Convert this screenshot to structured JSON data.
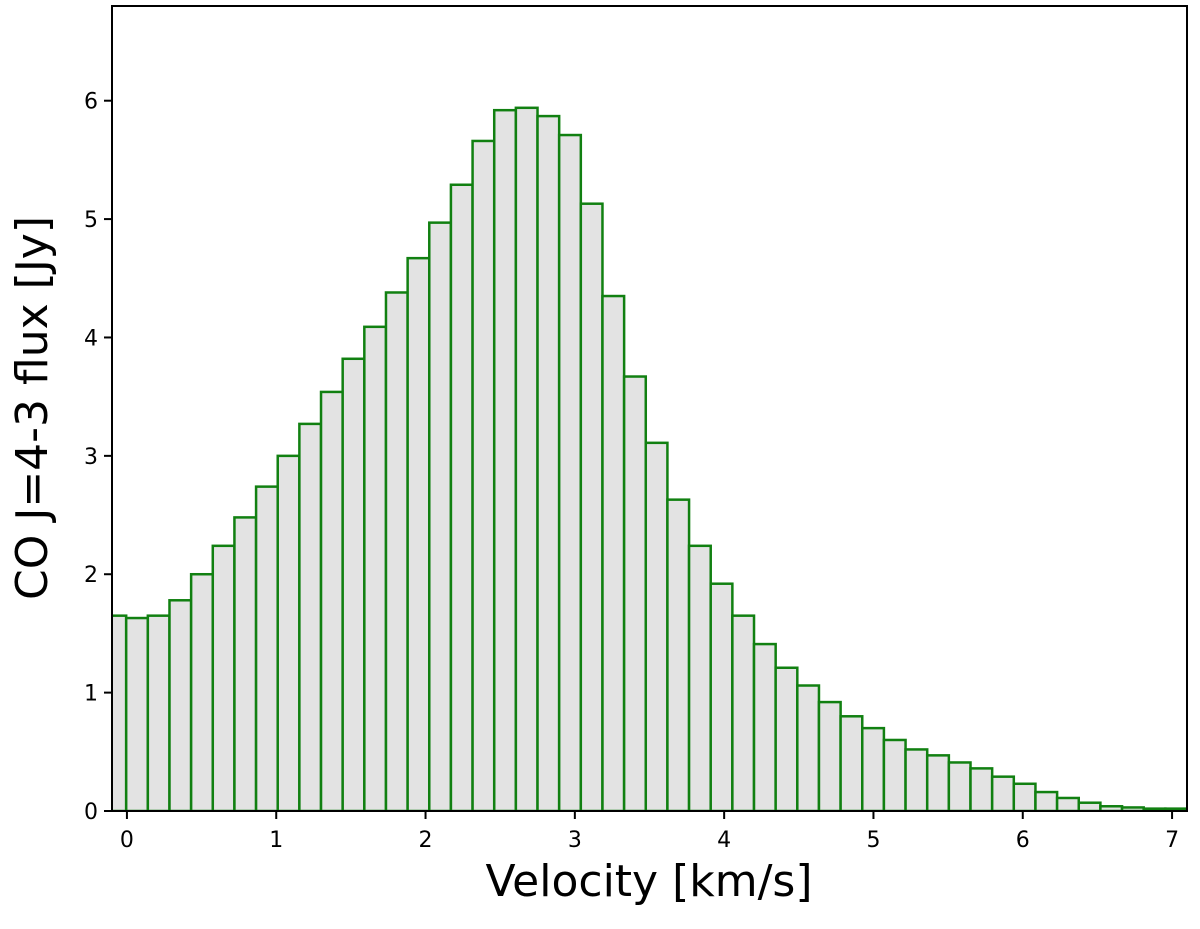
{
  "chart_data": {
    "type": "bar",
    "title": "",
    "xlabel": "Velocity [km/s]",
    "ylabel": "CO J=4-3 flux [Jy]",
    "xlim": [
      -0.1,
      7.1
    ],
    "ylim": [
      0,
      6.8
    ],
    "xticks": [
      0,
      1,
      2,
      3,
      4,
      5,
      6,
      7
    ],
    "yticks": [
      0,
      1,
      2,
      3,
      4,
      5,
      6
    ],
    "grid": false,
    "bar_fill": "#e3e3e3",
    "bar_edge": "#118011",
    "bin_edges_start": -0.15,
    "bin_width": 0.145,
    "values": [
      1.65,
      1.63,
      1.65,
      1.78,
      2.0,
      2.24,
      2.48,
      2.74,
      3.0,
      3.27,
      3.54,
      3.82,
      4.09,
      4.38,
      4.67,
      4.97,
      5.29,
      5.66,
      5.92,
      5.94,
      5.87,
      5.71,
      5.13,
      4.35,
      3.67,
      3.11,
      2.63,
      2.24,
      1.92,
      1.65,
      1.41,
      1.21,
      1.06,
      0.92,
      0.8,
      0.7,
      0.6,
      0.52,
      0.47,
      0.41,
      0.36,
      0.29,
      0.23,
      0.16,
      0.11,
      0.07,
      0.04,
      0.03,
      0.02,
      0.02
    ]
  }
}
